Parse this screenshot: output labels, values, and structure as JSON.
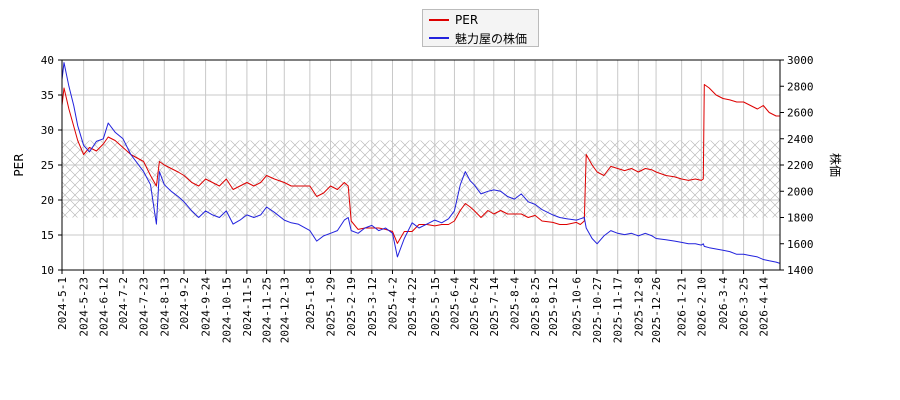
{
  "chart_data": {
    "type": "line",
    "title": "",
    "xlabel": "",
    "ylabel": "PER",
    "y2label": "株価",
    "ylim": [
      10,
      40
    ],
    "y2lim": [
      1400,
      3000
    ],
    "yticks": [
      10,
      15,
      20,
      25,
      30,
      35,
      40
    ],
    "y2ticks": [
      1400,
      1600,
      1800,
      2000,
      2200,
      2400,
      2600,
      2800,
      3000
    ],
    "xlim": [
      "2024-5-1",
      "2026-5-1"
    ],
    "xticks": [
      "2024-5-1",
      "2024-5-23",
      "2024-6-12",
      "2024-7-2",
      "2024-7-23",
      "2024-8-13",
      "2024-9-2",
      "2024-9-24",
      "2024-10-15",
      "2024-11-5",
      "2024-11-25",
      "2024-12-13",
      "2025-1-8",
      "2025-1-29",
      "2025-2-19",
      "2025-3-12",
      "2025-4-2",
      "2025-4-22",
      "2025-5-15",
      "2025-6-4",
      "2025-6-24",
      "2025-7-14",
      "2025-8-4",
      "2025-8-25",
      "2025-9-12",
      "2025-10-6",
      "2025-10-27",
      "2025-11-17",
      "2025-12-8",
      "2025-12-26",
      "2026-1-21",
      "2026-2-10",
      "2026-3-4",
      "2026-3-25",
      "2026-4-14"
    ],
    "grid": true,
    "legend_position": "top-center",
    "band": {
      "label_hint": "PER range band",
      "y_range": [
        17.5,
        28.5
      ]
    },
    "series": [
      {
        "name": "PER",
        "axis": "left",
        "color": "#dd0000",
        "points": [
          [
            "2024-5-1",
            33.5
          ],
          [
            "2024-5-3",
            36.0
          ],
          [
            "2024-5-8",
            33.0
          ],
          [
            "2024-5-13",
            30.5
          ],
          [
            "2024-5-17",
            28.5
          ],
          [
            "2024-5-23",
            26.5
          ],
          [
            "2024-5-29",
            27.5
          ],
          [
            "2024-6-5",
            27.0
          ],
          [
            "2024-6-12",
            28.0
          ],
          [
            "2024-6-17",
            29.0
          ],
          [
            "2024-6-24",
            28.5
          ],
          [
            "2024-7-2",
            27.5
          ],
          [
            "2024-7-10",
            26.5
          ],
          [
            "2024-7-23",
            25.5
          ],
          [
            "2024-7-30",
            23.5
          ],
          [
            "2024-8-5",
            22.0
          ],
          [
            "2024-8-8",
            25.5
          ],
          [
            "2024-8-13",
            25.0
          ],
          [
            "2024-8-20",
            24.5
          ],
          [
            "2024-8-27",
            24.0
          ],
          [
            "2024-9-2",
            23.5
          ],
          [
            "2024-9-10",
            22.5
          ],
          [
            "2024-9-17",
            22.0
          ],
          [
            "2024-9-24",
            23.0
          ],
          [
            "2024-10-1",
            22.5
          ],
          [
            "2024-10-8",
            22.0
          ],
          [
            "2024-10-15",
            23.0
          ],
          [
            "2024-10-22",
            21.5
          ],
          [
            "2024-10-29",
            22.0
          ],
          [
            "2024-11-5",
            22.5
          ],
          [
            "2024-11-12",
            22.0
          ],
          [
            "2024-11-19",
            22.5
          ],
          [
            "2024-11-25",
            23.5
          ],
          [
            "2024-12-3",
            23.0
          ],
          [
            "2024-12-13",
            22.5
          ],
          [
            "2024-12-20",
            22.0
          ],
          [
            "2024-12-27",
            22.0
          ],
          [
            "2025-1-8",
            22.0
          ],
          [
            "2025-1-15",
            20.5
          ],
          [
            "2025-1-22",
            21.0
          ],
          [
            "2025-1-29",
            22.0
          ],
          [
            "2025-2-5",
            21.5
          ],
          [
            "2025-2-12",
            22.5
          ],
          [
            "2025-2-16",
            22.0
          ],
          [
            "2025-2-19",
            17.0
          ],
          [
            "2025-2-26",
            15.8
          ],
          [
            "2025-3-5",
            16.0
          ],
          [
            "2025-3-12",
            16.0
          ],
          [
            "2025-3-19",
            16.0
          ],
          [
            "2025-3-26",
            15.8
          ],
          [
            "2025-4-2",
            15.5
          ],
          [
            "2025-4-7",
            13.8
          ],
          [
            "2025-4-14",
            15.5
          ],
          [
            "2025-4-22",
            15.5
          ],
          [
            "2025-4-29",
            16.5
          ],
          [
            "2025-5-7",
            16.5
          ],
          [
            "2025-5-15",
            16.3
          ],
          [
            "2025-5-22",
            16.5
          ],
          [
            "2025-5-29",
            16.5
          ],
          [
            "2025-6-4",
            17.0
          ],
          [
            "2025-6-10",
            18.5
          ],
          [
            "2025-6-15",
            19.5
          ],
          [
            "2025-6-20",
            19.0
          ],
          [
            "2025-6-24",
            18.5
          ],
          [
            "2025-7-1",
            17.5
          ],
          [
            "2025-7-8",
            18.5
          ],
          [
            "2025-7-14",
            18.0
          ],
          [
            "2025-7-21",
            18.5
          ],
          [
            "2025-7-28",
            18.0
          ],
          [
            "2025-8-4",
            18.0
          ],
          [
            "2025-8-11",
            18.0
          ],
          [
            "2025-8-18",
            17.5
          ],
          [
            "2025-8-25",
            17.8
          ],
          [
            "2025-9-1",
            17.0
          ],
          [
            "2025-9-12",
            16.8
          ],
          [
            "2025-9-19",
            16.5
          ],
          [
            "2025-9-26",
            16.5
          ],
          [
            "2025-10-6",
            16.8
          ],
          [
            "2025-10-10",
            16.5
          ],
          [
            "2025-10-14",
            17.0
          ],
          [
            "2025-10-16",
            26.5
          ],
          [
            "2025-10-22",
            25.0
          ],
          [
            "2025-10-27",
            24.0
          ],
          [
            "2025-11-3",
            23.5
          ],
          [
            "2025-11-10",
            24.8
          ],
          [
            "2025-11-17",
            24.5
          ],
          [
            "2025-11-24",
            24.2
          ],
          [
            "2025-12-1",
            24.5
          ],
          [
            "2025-12-8",
            24.0
          ],
          [
            "2025-12-15",
            24.5
          ],
          [
            "2025-12-22",
            24.3
          ],
          [
            "2025-12-26",
            24.0
          ],
          [
            "2026-1-5",
            23.5
          ],
          [
            "2026-1-14",
            23.3
          ],
          [
            "2026-1-21",
            23.0
          ],
          [
            "2026-1-28",
            22.8
          ],
          [
            "2026-2-4",
            23.0
          ],
          [
            "2026-2-10",
            22.8
          ],
          [
            "2026-2-12",
            23.0
          ],
          [
            "2026-2-13",
            36.5
          ],
          [
            "2026-2-18",
            36.0
          ],
          [
            "2026-2-25",
            35.0
          ],
          [
            "2026-3-4",
            34.5
          ],
          [
            "2026-3-11",
            34.3
          ],
          [
            "2026-3-18",
            34.0
          ],
          [
            "2026-3-25",
            34.0
          ],
          [
            "2026-4-1",
            33.5
          ],
          [
            "2026-4-8",
            33.0
          ],
          [
            "2026-4-14",
            33.5
          ],
          [
            "2026-4-20",
            32.5
          ],
          [
            "2026-4-27",
            32.0
          ],
          [
            "2026-5-1",
            32.0
          ]
        ]
      },
      {
        "name": "魅力屋の株価",
        "axis": "right",
        "color": "#2222dd",
        "points": [
          [
            "2024-5-1",
            2850
          ],
          [
            "2024-5-3",
            2980
          ],
          [
            "2024-5-8",
            2800
          ],
          [
            "2024-5-13",
            2650
          ],
          [
            "2024-5-17",
            2500
          ],
          [
            "2024-5-23",
            2350
          ],
          [
            "2024-5-29",
            2300
          ],
          [
            "2024-6-5",
            2380
          ],
          [
            "2024-6-12",
            2400
          ],
          [
            "2024-6-17",
            2520
          ],
          [
            "2024-6-24",
            2450
          ],
          [
            "2024-7-2",
            2400
          ],
          [
            "2024-7-10",
            2280
          ],
          [
            "2024-7-23",
            2150
          ],
          [
            "2024-7-30",
            2050
          ],
          [
            "2024-8-5",
            1750
          ],
          [
            "2024-8-8",
            2150
          ],
          [
            "2024-8-13",
            2050
          ],
          [
            "2024-8-20",
            2000
          ],
          [
            "2024-8-27",
            1960
          ],
          [
            "2024-9-2",
            1920
          ],
          [
            "2024-9-10",
            1850
          ],
          [
            "2024-9-17",
            1800
          ],
          [
            "2024-9-24",
            1850
          ],
          [
            "2024-10-1",
            1820
          ],
          [
            "2024-10-8",
            1800
          ],
          [
            "2024-10-15",
            1850
          ],
          [
            "2024-10-22",
            1750
          ],
          [
            "2024-10-29",
            1780
          ],
          [
            "2024-11-5",
            1820
          ],
          [
            "2024-11-12",
            1800
          ],
          [
            "2024-11-19",
            1820
          ],
          [
            "2024-11-25",
            1880
          ],
          [
            "2024-12-3",
            1840
          ],
          [
            "2024-12-13",
            1780
          ],
          [
            "2024-12-20",
            1760
          ],
          [
            "2024-12-27",
            1750
          ],
          [
            "2025-1-8",
            1700
          ],
          [
            "2025-1-15",
            1620
          ],
          [
            "2025-1-22",
            1660
          ],
          [
            "2025-1-29",
            1680
          ],
          [
            "2025-2-5",
            1700
          ],
          [
            "2025-2-12",
            1780
          ],
          [
            "2025-2-16",
            1800
          ],
          [
            "2025-2-19",
            1700
          ],
          [
            "2025-2-26",
            1680
          ],
          [
            "2025-3-5",
            1720
          ],
          [
            "2025-3-12",
            1740
          ],
          [
            "2025-3-19",
            1700
          ],
          [
            "2025-3-26",
            1720
          ],
          [
            "2025-4-2",
            1680
          ],
          [
            "2025-4-7",
            1500
          ],
          [
            "2025-4-14",
            1640
          ],
          [
            "2025-4-22",
            1760
          ],
          [
            "2025-4-29",
            1720
          ],
          [
            "2025-5-7",
            1750
          ],
          [
            "2025-5-15",
            1780
          ],
          [
            "2025-5-22",
            1760
          ],
          [
            "2025-5-29",
            1790
          ],
          [
            "2025-6-4",
            1850
          ],
          [
            "2025-6-10",
            2050
          ],
          [
            "2025-6-15",
            2150
          ],
          [
            "2025-6-20",
            2080
          ],
          [
            "2025-6-24",
            2050
          ],
          [
            "2025-7-1",
            1980
          ],
          [
            "2025-7-8",
            2000
          ],
          [
            "2025-7-14",
            2010
          ],
          [
            "2025-7-21",
            2000
          ],
          [
            "2025-7-28",
            1960
          ],
          [
            "2025-8-4",
            1940
          ],
          [
            "2025-8-11",
            1980
          ],
          [
            "2025-8-18",
            1920
          ],
          [
            "2025-8-25",
            1900
          ],
          [
            "2025-9-1",
            1860
          ],
          [
            "2025-9-12",
            1820
          ],
          [
            "2025-9-19",
            1800
          ],
          [
            "2025-9-26",
            1790
          ],
          [
            "2025-10-6",
            1780
          ],
          [
            "2025-10-10",
            1790
          ],
          [
            "2025-10-14",
            1800
          ],
          [
            "2025-10-16",
            1720
          ],
          [
            "2025-10-22",
            1640
          ],
          [
            "2025-10-27",
            1600
          ],
          [
            "2025-11-3",
            1660
          ],
          [
            "2025-11-10",
            1700
          ],
          [
            "2025-11-17",
            1680
          ],
          [
            "2025-11-24",
            1670
          ],
          [
            "2025-12-1",
            1680
          ],
          [
            "2025-12-8",
            1660
          ],
          [
            "2025-12-15",
            1680
          ],
          [
            "2025-12-22",
            1660
          ],
          [
            "2025-12-26",
            1640
          ],
          [
            "2026-1-5",
            1630
          ],
          [
            "2026-1-14",
            1620
          ],
          [
            "2026-1-21",
            1610
          ],
          [
            "2026-1-28",
            1600
          ],
          [
            "2026-2-4",
            1600
          ],
          [
            "2026-2-10",
            1590
          ],
          [
            "2026-2-12",
            1600
          ],
          [
            "2026-2-13",
            1580
          ],
          [
            "2026-2-18",
            1570
          ],
          [
            "2026-2-25",
            1560
          ],
          [
            "2026-3-4",
            1550
          ],
          [
            "2026-3-11",
            1540
          ],
          [
            "2026-3-18",
            1520
          ],
          [
            "2026-3-25",
            1520
          ],
          [
            "2026-4-1",
            1510
          ],
          [
            "2026-4-8",
            1500
          ],
          [
            "2026-4-14",
            1480
          ],
          [
            "2026-4-20",
            1470
          ],
          [
            "2026-4-27",
            1460
          ],
          [
            "2026-5-1",
            1450
          ]
        ]
      }
    ]
  }
}
